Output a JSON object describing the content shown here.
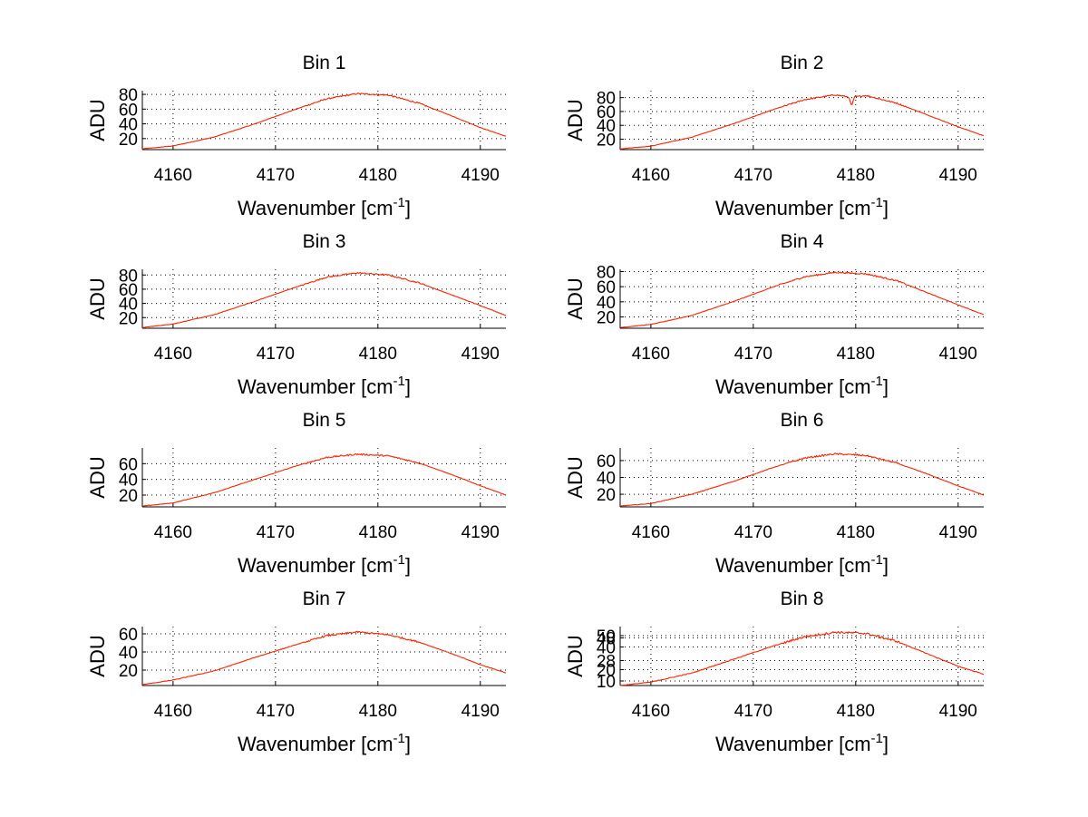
{
  "chart_data": [
    {
      "type": "line",
      "title": "Bin 1",
      "xlabel": "Wavenumber [cm",
      "xlabel_sup": "-1",
      "xlabel_end": "]",
      "ylabel": "ADU",
      "xlim": [
        4157,
        4192.5
      ],
      "ylim": [
        5,
        85
      ],
      "xticks": [
        4160,
        4170,
        4180,
        4190
      ],
      "yticks": [
        20,
        40,
        60,
        80
      ],
      "series": [
        {
          "name": "spectrum",
          "color": "#ff2200",
          "x": [
            4157,
            4160,
            4164,
            4168,
            4172,
            4175,
            4178,
            4181,
            4184,
            4187,
            4190,
            4192.5
          ],
          "y": [
            6,
            10,
            22,
            40,
            60,
            74,
            81,
            79,
            68,
            52,
            35,
            23
          ]
        }
      ]
    },
    {
      "type": "line",
      "title": "Bin 2",
      "xlabel": "Wavenumber [cm",
      "xlabel_sup": "-1",
      "xlabel_end": "]",
      "ylabel": "ADU",
      "xlim": [
        4157,
        4192.5
      ],
      "ylim": [
        5,
        90
      ],
      "xticks": [
        4160,
        4170,
        4180,
        4190
      ],
      "yticks": [
        20,
        40,
        60,
        80
      ],
      "series": [
        {
          "name": "spectrum",
          "color": "#ff2200",
          "x": [
            4157,
            4160,
            4164,
            4168,
            4172,
            4175,
            4178,
            4179.3,
            4179.6,
            4179.9,
            4181,
            4184,
            4187,
            4190,
            4192.5
          ],
          "y": [
            6,
            10,
            23,
            42,
            63,
            77,
            84,
            81,
            68,
            81,
            83,
            72,
            55,
            38,
            25
          ]
        }
      ]
    },
    {
      "type": "line",
      "title": "Bin 3",
      "xlabel": "Wavenumber [cm",
      "xlabel_sup": "-1",
      "xlabel_end": "]",
      "ylabel": "ADU",
      "xlim": [
        4157,
        4192.5
      ],
      "ylim": [
        5,
        88
      ],
      "xticks": [
        4160,
        4170,
        4180,
        4190
      ],
      "yticks": [
        20,
        40,
        60,
        80
      ],
      "series": [
        {
          "name": "spectrum",
          "color": "#ff2200",
          "x": [
            4157,
            4160,
            4164,
            4168,
            4172,
            4175,
            4178,
            4181,
            4184,
            4187,
            4190,
            4192.5
          ],
          "y": [
            6,
            11,
            24,
            43,
            63,
            77,
            83,
            80,
            69,
            53,
            37,
            23
          ]
        }
      ]
    },
    {
      "type": "line",
      "title": "Bin 4",
      "xlabel": "Wavenumber [cm",
      "xlabel_sup": "-1",
      "xlabel_end": "]",
      "ylabel": "ADU",
      "xlim": [
        4157,
        4192.5
      ],
      "ylim": [
        5,
        83
      ],
      "xticks": [
        4160,
        4170,
        4180,
        4190
      ],
      "yticks": [
        20,
        40,
        60,
        80
      ],
      "series": [
        {
          "name": "spectrum",
          "color": "#ff2200",
          "x": [
            4157,
            4160,
            4164,
            4168,
            4172,
            4175,
            4178,
            4181,
            4184,
            4187,
            4190,
            4192.5
          ],
          "y": [
            6,
            10,
            22,
            40,
            60,
            73,
            79,
            77,
            68,
            52,
            36,
            23
          ]
        }
      ]
    },
    {
      "type": "line",
      "title": "Bin 5",
      "xlabel": "Wavenumber [cm",
      "xlabel_sup": "-1",
      "xlabel_end": "]",
      "ylabel": "ADU",
      "xlim": [
        4157,
        4192.5
      ],
      "ylim": [
        5,
        80
      ],
      "xticks": [
        4160,
        4170,
        4180,
        4190
      ],
      "yticks": [
        20,
        40,
        60
      ],
      "series": [
        {
          "name": "spectrum",
          "color": "#ff2200",
          "x": [
            4157,
            4160,
            4164,
            4168,
            4172,
            4175,
            4178,
            4181,
            4184,
            4187,
            4190,
            4192.5
          ],
          "y": [
            6,
            10,
            23,
            40,
            57,
            68,
            72,
            70,
            61,
            47,
            32,
            20
          ]
        }
      ]
    },
    {
      "type": "line",
      "title": "Bin 6",
      "xlabel": "Wavenumber [cm",
      "xlabel_sup": "-1",
      "xlabel_end": "]",
      "ylabel": "ADU",
      "xlim": [
        4157,
        4192.5
      ],
      "ylim": [
        5,
        75
      ],
      "xticks": [
        4160,
        4170,
        4180,
        4190
      ],
      "yticks": [
        20,
        40,
        60
      ],
      "series": [
        {
          "name": "spectrum",
          "color": "#ff2200",
          "x": [
            4157,
            4160,
            4164,
            4168,
            4172,
            4175,
            4178,
            4181,
            4184,
            4187,
            4190,
            4192.5
          ],
          "y": [
            6,
            9,
            20,
            35,
            52,
            63,
            68,
            66,
            57,
            44,
            30,
            19
          ]
        }
      ]
    },
    {
      "type": "line",
      "title": "Bin 7",
      "xlabel": "Wavenumber [cm",
      "xlabel_sup": "-1",
      "xlabel_end": "]",
      "ylabel": "ADU",
      "xlim": [
        4157,
        4192.5
      ],
      "ylim": [
        3,
        68
      ],
      "xticks": [
        4160,
        4170,
        4180,
        4190
      ],
      "yticks": [
        20,
        40,
        60
      ],
      "series": [
        {
          "name": "spectrum",
          "color": "#ff2200",
          "x": [
            4157,
            4160,
            4164,
            4168,
            4172,
            4175,
            4178,
            4181,
            4184,
            4187,
            4190,
            4192.5
          ],
          "y": [
            4,
            9,
            19,
            34,
            48,
            58,
            62,
            59,
            51,
            39,
            26,
            17
          ]
        }
      ]
    },
    {
      "type": "line",
      "title": "Bin 8",
      "xlabel": "Wavenumber [cm",
      "xlabel_sup": "-1",
      "xlabel_end": "]",
      "ylabel": "ADU",
      "xlim": [
        4157,
        4192.5
      ],
      "ylim": [
        6,
        58
      ],
      "xticks": [
        4160,
        4170,
        4180,
        4190
      ],
      "yticks": [
        10,
        20,
        28,
        40,
        48,
        50
      ],
      "ytick_labels": [
        "10",
        "20",
        "28",
        "40",
        "48",
        "50"
      ],
      "series": [
        {
          "name": "spectrum",
          "color": "#ff2200",
          "x": [
            4157,
            4160,
            4164,
            4168,
            4172,
            4175,
            4178,
            4181,
            4184,
            4187,
            4190,
            4192.5
          ],
          "y": [
            6,
            9,
            17,
            29,
            41,
            49,
            53,
            52,
            45,
            34,
            23,
            16
          ]
        }
      ]
    }
  ]
}
